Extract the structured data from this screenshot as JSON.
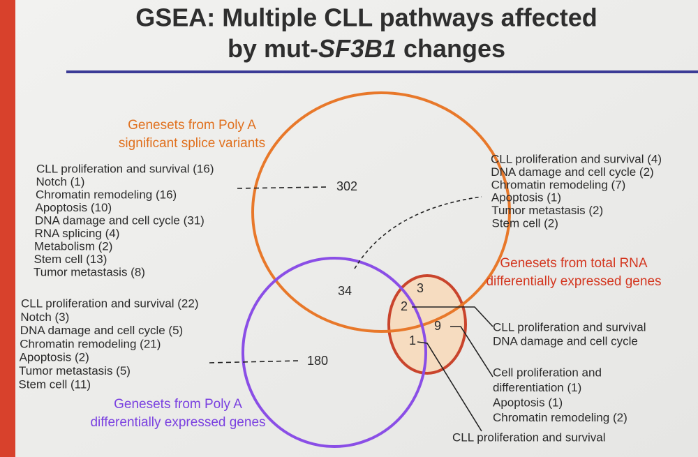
{
  "title": {
    "line1": "GSEA: Multiple CLL pathways affected",
    "line2_start": "by mut-",
    "line2_gene": "SF3B1",
    "line2_end": " changes"
  },
  "sets": [
    {
      "label": [
        "Genesets from Poly A",
        "significant splice variants"
      ]
    },
    {
      "label": [
        "Genesets from total RNA",
        "differentially expressed genes"
      ]
    },
    {
      "label": [
        "Genesets from Poly A",
        "differentially expressed genes"
      ]
    }
  ],
  "regions": {
    "splice_only": "302",
    "polya_de_only": "180",
    "splice_and_polya_de": "34",
    "splice_and_total": "3",
    "all_three": "2",
    "total_only": "9",
    "polya_de_and_total": "1"
  },
  "lists": {
    "splice_only": [
      "CLL proliferation and survival (16)",
      "Notch (1)",
      "Chromatin remodeling (16)",
      "Apoptosis (10)",
      "DNA damage and cell cycle (31)",
      "RNA splicing (4)",
      "Metabolism (2)",
      "Stem cell (13)",
      "Tumor metastasis (8)"
    ],
    "polya_de_only": [
      "CLL proliferation and survival (22)",
      "Notch (3)",
      "DNA damage and cell cycle (5)",
      "Chromatin remodeling (21)",
      "Apoptosis (2)",
      "Tumor metastasis (5)",
      "Stem cell (11)"
    ],
    "splice_and_polya_de": [
      "CLL proliferation and survival (4)",
      "DNA damage and cell cycle (2)",
      "Chromatin remodeling (7)",
      "Apoptosis (1)",
      "Tumor metastasis (2)",
      "Stem cell (2)"
    ],
    "all_three": [
      "CLL proliferation and survival",
      "DNA damage and cell cycle"
    ],
    "total_only": [
      "Cell proliferation and",
      "differentiation (1)",
      "Apoptosis (1)",
      "Chromatin remodeling (2)"
    ],
    "polya_de_and_total": [
      "CLL proliferation and survival"
    ]
  }
}
